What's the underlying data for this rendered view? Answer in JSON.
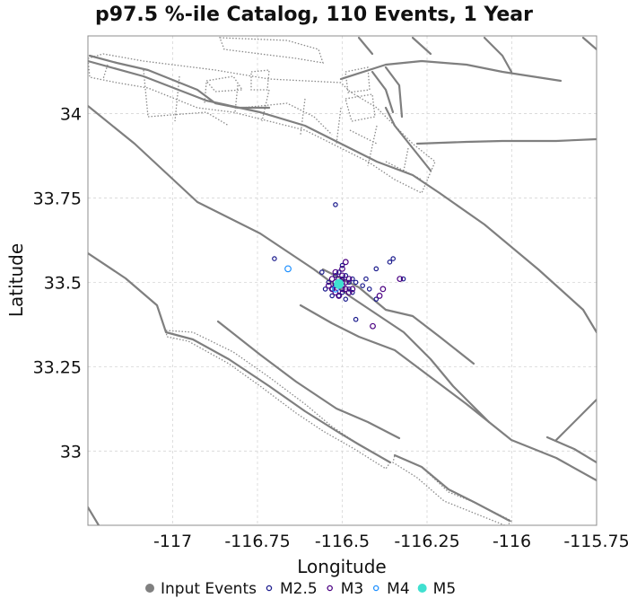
{
  "chart_data": {
    "type": "scatter",
    "title": "p97.5 %-ile Catalog, 110 Events, 1 Year",
    "xlabel": "Longitude",
    "ylabel": "Latitude",
    "xlim": [
      -117.25,
      -115.75
    ],
    "ylim": [
      32.78,
      34.23
    ],
    "x_ticks": [
      -117,
      -116.75,
      -116.5,
      -116.25,
      -116,
      -115.75
    ],
    "y_ticks": [
      33,
      33.25,
      33.5,
      33.75,
      34
    ],
    "x_tick_labels": [
      "-117",
      "-116.75",
      "-116.5",
      "-116.25",
      "-116",
      "-115.75"
    ],
    "y_tick_labels": [
      "33",
      "33.25",
      "33.5",
      "33.75",
      "34"
    ],
    "grid": true,
    "legend_position": "bottom",
    "legend": [
      {
        "label": "Input Events",
        "marker": "filled-circle",
        "color": "#808080"
      },
      {
        "label": "M2.5",
        "marker": "open-circle",
        "color": "#1a1a8c"
      },
      {
        "label": "M3",
        "marker": "open-circle",
        "color": "#4b0082"
      },
      {
        "label": "M4",
        "marker": "open-circle",
        "color": "#1e90ff"
      },
      {
        "label": "M5",
        "marker": "filled-circle",
        "color": "#40e0d0"
      }
    ],
    "series": [
      {
        "name": "M2.5",
        "color": "#1a1a8c",
        "points": [
          [
            -116.52,
            33.73
          ],
          [
            -116.7,
            33.57
          ],
          [
            -116.56,
            33.53
          ],
          [
            -116.36,
            33.56
          ],
          [
            -116.35,
            33.57
          ],
          [
            -116.32,
            33.51
          ],
          [
            -116.4,
            33.54
          ],
          [
            -116.43,
            33.51
          ],
          [
            -116.47,
            33.47
          ],
          [
            -116.4,
            33.45
          ],
          [
            -116.42,
            33.48
          ],
          [
            -116.49,
            33.45
          ],
          [
            -116.46,
            33.39
          ],
          [
            -116.55,
            33.48
          ],
          [
            -116.48,
            33.5
          ],
          [
            -116.53,
            33.46
          ],
          [
            -116.52,
            33.49
          ],
          [
            -116.5,
            33.51
          ],
          [
            -116.54,
            33.5
          ],
          [
            -116.47,
            33.51
          ],
          [
            -116.51,
            33.46
          ],
          [
            -116.48,
            33.48
          ],
          [
            -116.52,
            33.52
          ],
          [
            -116.5,
            33.47
          ],
          [
            -116.53,
            33.48
          ],
          [
            -116.49,
            33.52
          ],
          [
            -116.46,
            33.5
          ],
          [
            -116.51,
            33.53
          ],
          [
            -116.5,
            33.55
          ],
          [
            -116.44,
            33.49
          ]
        ]
      },
      {
        "name": "M3",
        "color": "#4b0082",
        "points": [
          [
            -116.41,
            33.37
          ],
          [
            -116.38,
            33.48
          ],
          [
            -116.39,
            33.46
          ],
          [
            -116.33,
            33.51
          ],
          [
            -116.49,
            33.56
          ],
          [
            -116.52,
            33.53
          ],
          [
            -116.5,
            33.54
          ],
          [
            -116.53,
            33.48
          ],
          [
            -116.51,
            33.46
          ],
          [
            -116.48,
            33.51
          ],
          [
            -116.47,
            33.48
          ],
          [
            -116.52,
            33.5
          ],
          [
            -116.5,
            33.49
          ],
          [
            -116.49,
            33.48
          ],
          [
            -116.51,
            33.51
          ],
          [
            -116.54,
            33.49
          ],
          [
            -116.48,
            33.47
          ],
          [
            -116.5,
            33.52
          ],
          [
            -116.53,
            33.51
          ],
          [
            -116.52,
            33.47
          ],
          [
            -116.49,
            33.5
          ],
          [
            -116.51,
            33.49
          ],
          [
            -116.5,
            33.48
          ],
          [
            -116.52,
            33.49
          ],
          [
            -116.51,
            33.5
          ],
          [
            -116.5,
            33.5
          ]
        ]
      },
      {
        "name": "M4",
        "color": "#1e90ff",
        "points": [
          [
            -116.66,
            33.54
          ],
          [
            -116.52,
            33.48
          ]
        ]
      },
      {
        "name": "M5",
        "color": "#40e0d0",
        "points": [
          [
            -116.51,
            33.495
          ]
        ]
      }
    ]
  }
}
